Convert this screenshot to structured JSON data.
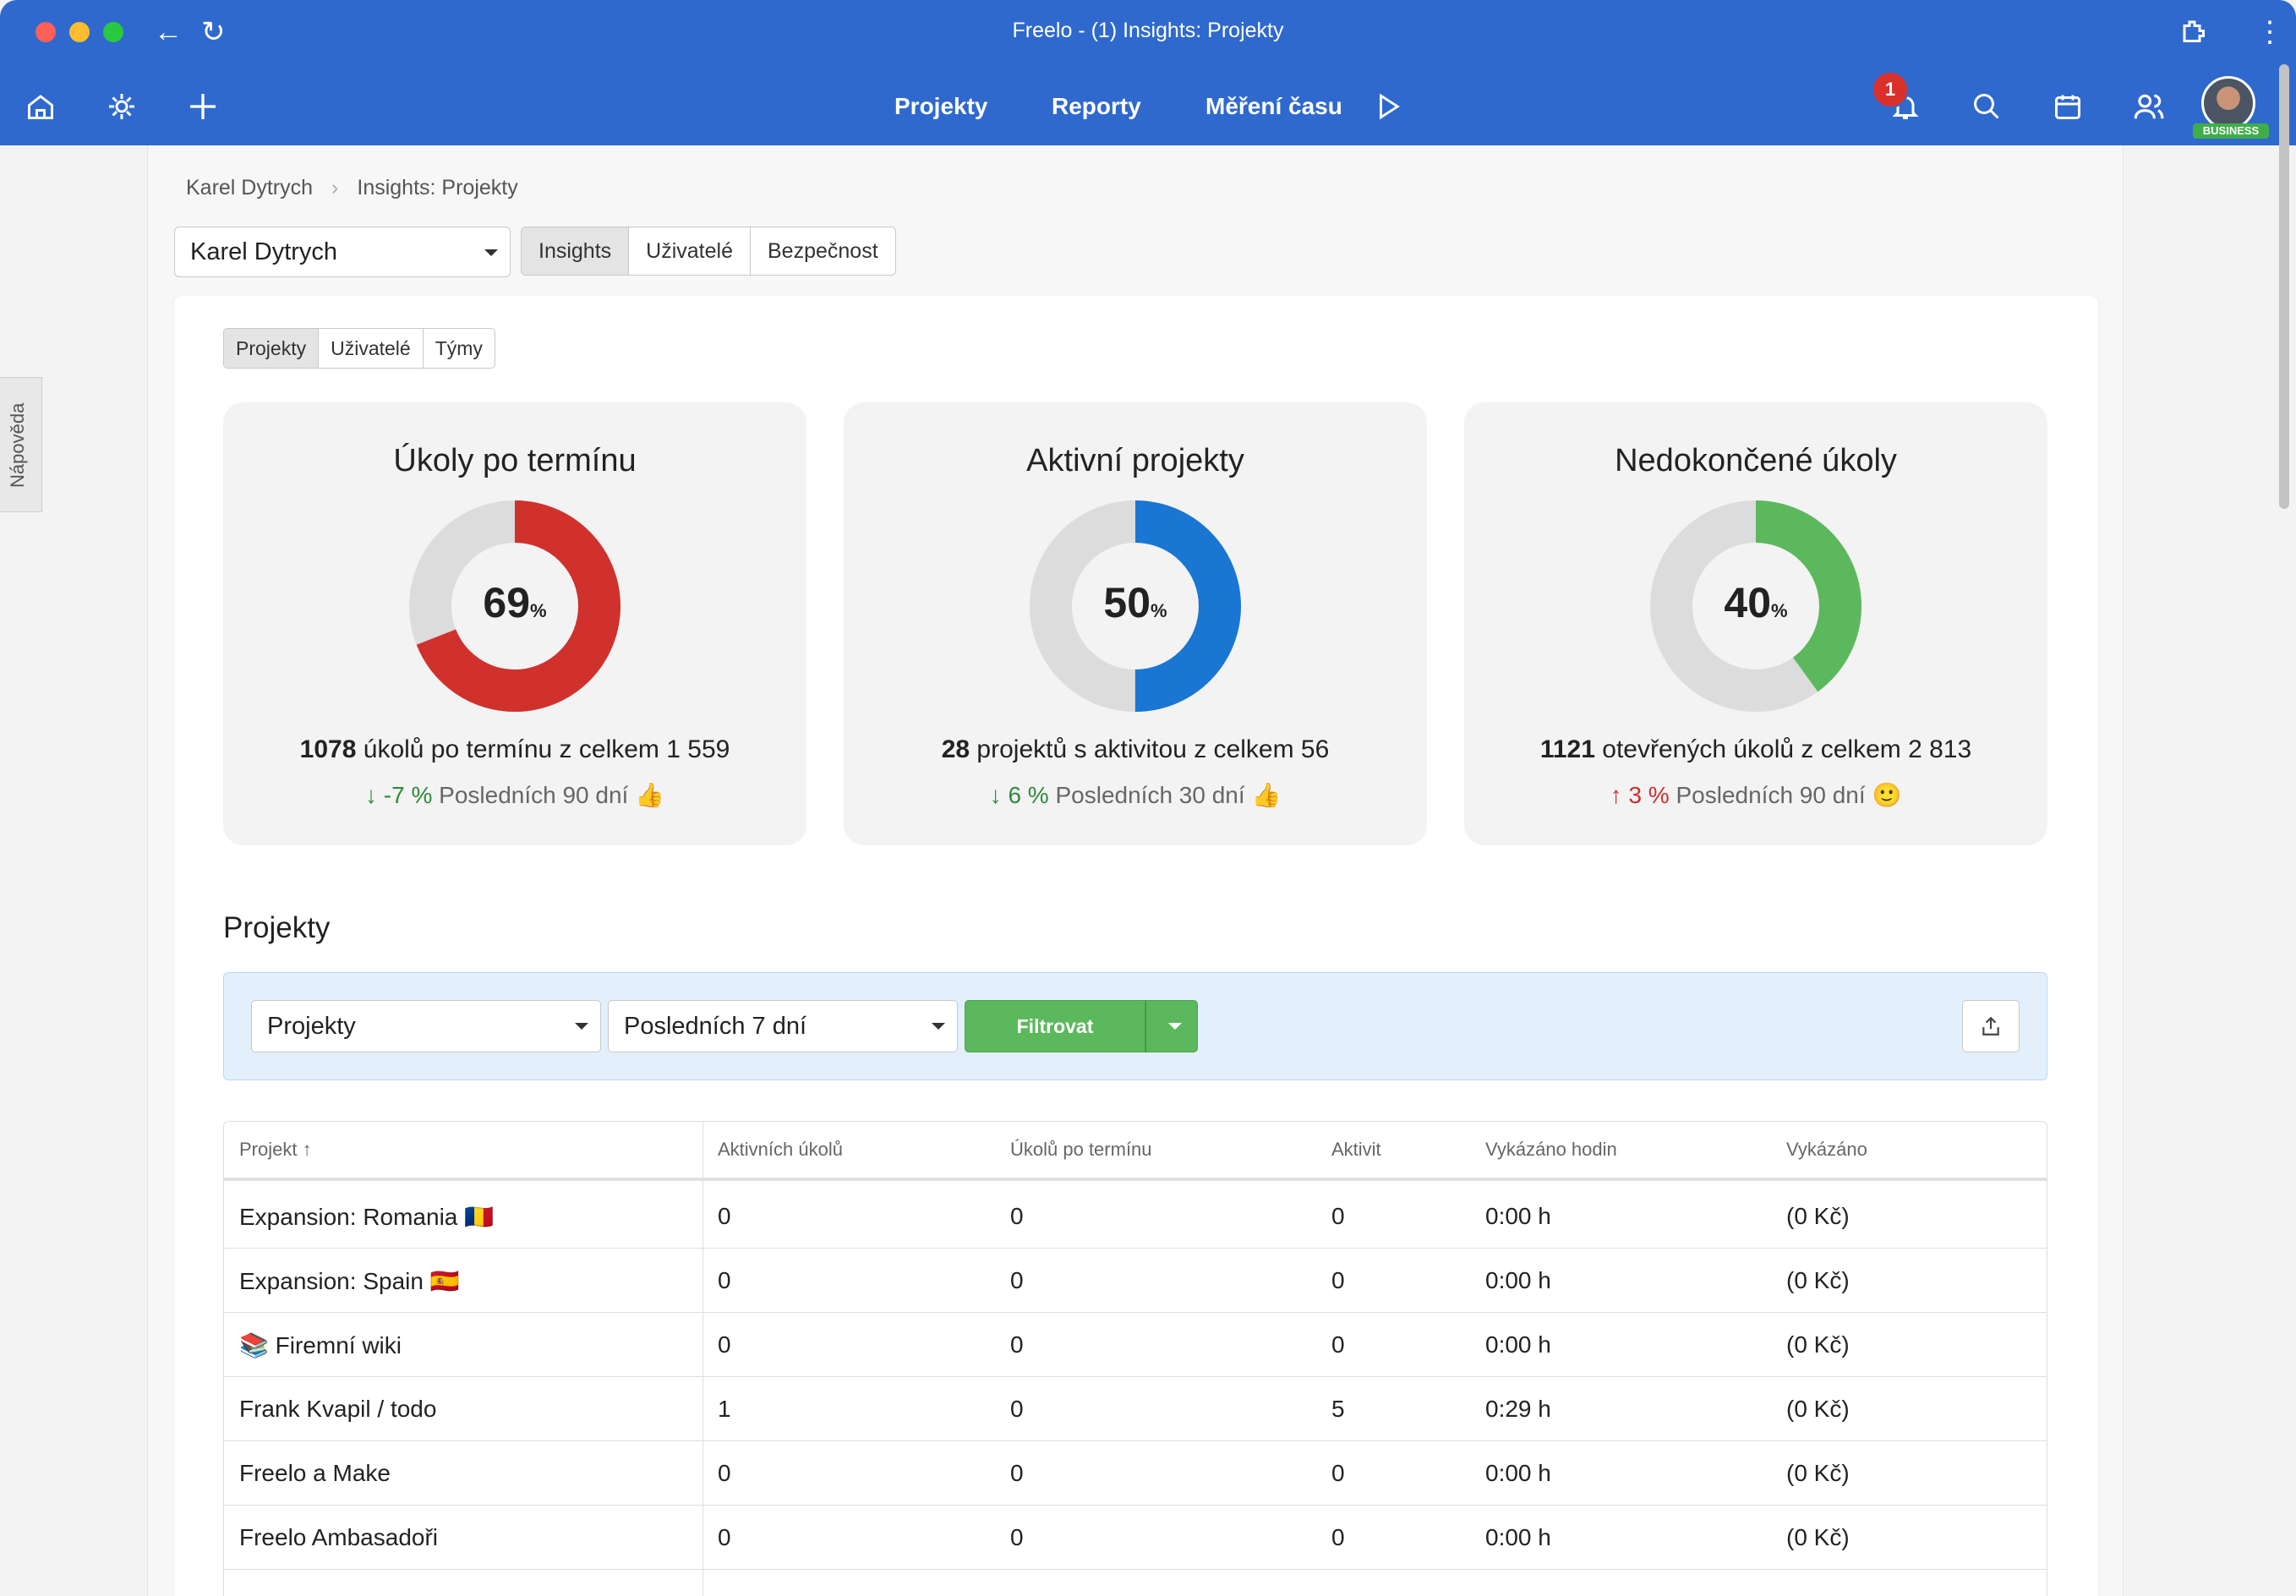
{
  "window": {
    "title": "Freelo - (1) Insights: Projekty"
  },
  "nav": {
    "links": [
      "Projekty",
      "Reporty",
      "Měření času"
    ],
    "notification_count": "1",
    "plan_badge": "BUSINESS"
  },
  "help_tab": "Nápověda",
  "breadcrumb": {
    "owner": "Karel Dytrych",
    "current": "Insights: Projekty"
  },
  "account_select": {
    "value": "Karel Dytrych"
  },
  "main_tabs": [
    "Insights",
    "Uživatelé",
    "Bezpečnost"
  ],
  "sub_tabs": [
    "Projekty",
    "Uživatelé",
    "Týmy"
  ],
  "stats": [
    {
      "title": "Úkoly po termínu",
      "percent": "69",
      "percent_value": 0.69,
      "color": "#d0312d",
      "count": "1078",
      "rest": " úkolů po termínu z celkem 1 559",
      "trend_arrow": "↓",
      "trend_value": "-7 %",
      "trend_text": " Posledních 90 dní",
      "emoji": "👍",
      "trend_color": "down"
    },
    {
      "title": "Aktivní projekty",
      "percent": "50",
      "percent_value": 0.5,
      "color": "#1976d2",
      "count": "28",
      "rest": " projektů s aktivitou z celkem 56",
      "trend_arrow": "↓",
      "trend_value": "6 %",
      "trend_text": " Posledních 30 dní",
      "emoji": "👍",
      "trend_color": "down"
    },
    {
      "title": "Nedokončené úkoly",
      "percent": "40",
      "percent_value": 0.4,
      "color": "#5cb85c",
      "count": "1121",
      "rest": " otevřených úkolů z celkem 2 813",
      "trend_arrow": "↑",
      "trend_value": "3 %",
      "trend_text": " Posledních 90 dní",
      "emoji": "🙂",
      "trend_color": "up"
    }
  ],
  "percent_unit": "%",
  "section_title": "Projekty",
  "filter": {
    "type_select": "Projekty",
    "period_select": "Posledních 7 dní",
    "button": "Filtrovat"
  },
  "table": {
    "headers": [
      "Projekt ↑",
      "Aktivních úkolů",
      "Úkolů po termínu",
      "Aktivit",
      "Vykázáno hodin",
      "Vykázáno"
    ],
    "rows": [
      [
        "Expansion: Romania 🇷🇴",
        "0",
        "0",
        "0",
        "0:00 h",
        "(0 Kč)"
      ],
      [
        "Expansion: Spain 🇪🇸",
        "0",
        "0",
        "0",
        "0:00 h",
        "(0 Kč)"
      ],
      [
        "📚 Firemní wiki",
        "0",
        "0",
        "0",
        "0:00 h",
        "(0 Kč)"
      ],
      [
        "Frank Kvapil / todo",
        "1",
        "0",
        "5",
        "0:29 h",
        "(0 Kč)"
      ],
      [
        "Freelo a Make",
        "0",
        "0",
        "0",
        "0:00 h",
        "(0 Kč)"
      ],
      [
        "Freelo Ambasadoři",
        "0",
        "0",
        "0",
        "0:00 h",
        "(0 Kč)"
      ]
    ]
  }
}
